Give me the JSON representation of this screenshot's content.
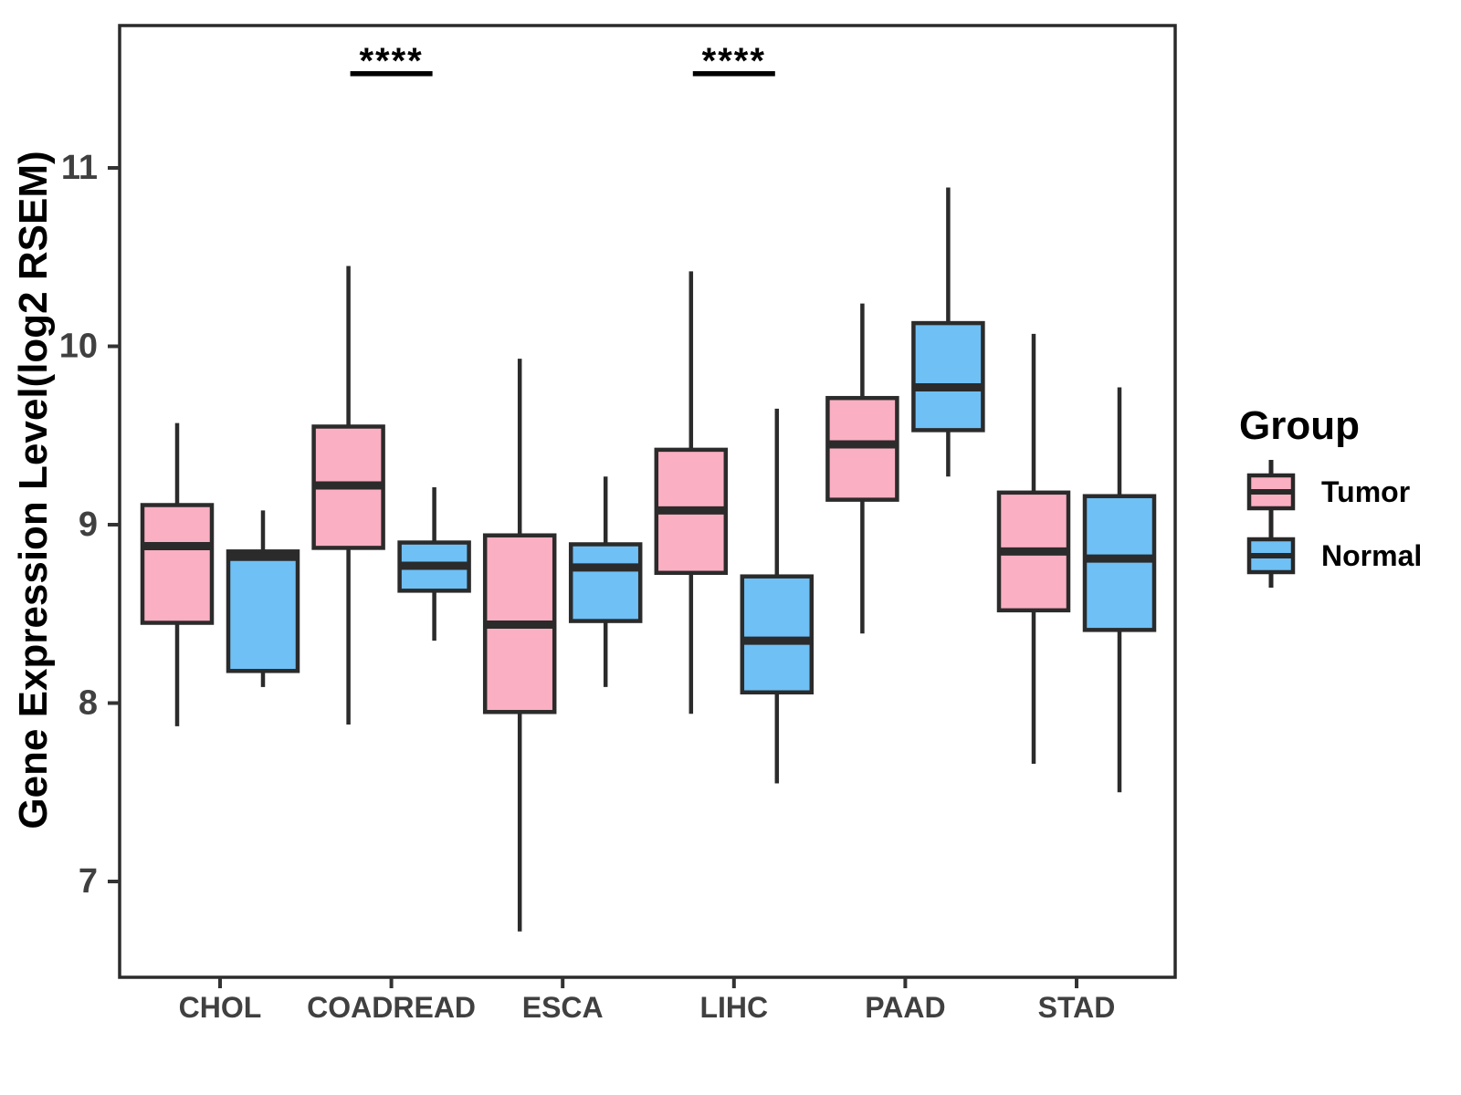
{
  "y_axis": {
    "label": "Gene Expression Level(log2 RSEM)",
    "tick_labels": [
      "7",
      "8",
      "9",
      "10",
      "11"
    ]
  },
  "x_axis": {
    "tick_labels": [
      "CHOL",
      "COADREAD",
      "ESCA",
      "LIHC",
      "PAAD",
      "STAD"
    ]
  },
  "legend": {
    "title": "Group",
    "items": [
      {
        "label": "Tumor",
        "color": "#FBAFC2"
      },
      {
        "label": "Normal",
        "color": "#6FC0F5"
      }
    ]
  },
  "chart_data": {
    "type": "boxplot",
    "title": "",
    "xlabel": "",
    "ylabel": "Gene Expression Level(log2 RSEM)",
    "y_ticks": [
      7,
      8,
      9,
      10,
      11
    ],
    "ylim": [
      6.45,
      11.8
    ],
    "grid": false,
    "legend_position": "right",
    "categories": [
      "CHOL",
      "COADREAD",
      "ESCA",
      "LIHC",
      "PAAD",
      "STAD"
    ],
    "series": [
      {
        "name": "Tumor",
        "fill": "#FBAFC2",
        "boxes": [
          {
            "whisker_low": 7.87,
            "q1": 8.45,
            "median": 8.88,
            "q3": 9.11,
            "whisker_high": 9.57
          },
          {
            "whisker_low": 7.88,
            "q1": 8.87,
            "median": 9.22,
            "q3": 9.55,
            "whisker_high": 10.45
          },
          {
            "whisker_low": 6.72,
            "q1": 7.95,
            "median": 8.44,
            "q3": 8.94,
            "whisker_high": 9.93
          },
          {
            "whisker_low": 7.94,
            "q1": 8.73,
            "median": 9.08,
            "q3": 9.42,
            "whisker_high": 10.42
          },
          {
            "whisker_low": 8.39,
            "q1": 9.14,
            "median": 9.45,
            "q3": 9.71,
            "whisker_high": 10.24
          },
          {
            "whisker_low": 7.66,
            "q1": 8.52,
            "median": 8.85,
            "q3": 9.18,
            "whisker_high": 10.07
          }
        ]
      },
      {
        "name": "Normal",
        "fill": "#6FC0F5",
        "boxes": [
          {
            "whisker_low": 8.09,
            "q1": 8.18,
            "median": 8.82,
            "q3": 8.85,
            "whisker_high": 9.08
          },
          {
            "whisker_low": 8.35,
            "q1": 8.63,
            "median": 8.77,
            "q3": 8.9,
            "whisker_high": 9.21
          },
          {
            "whisker_low": 8.09,
            "q1": 8.46,
            "median": 8.76,
            "q3": 8.89,
            "whisker_high": 9.27
          },
          {
            "whisker_low": 7.55,
            "q1": 8.06,
            "median": 8.35,
            "q3": 8.71,
            "whisker_high": 9.65
          },
          {
            "whisker_low": 9.27,
            "q1": 9.53,
            "median": 9.77,
            "q3": 10.13,
            "whisker_high": 10.89
          },
          {
            "whisker_low": 7.5,
            "q1": 8.41,
            "median": 8.81,
            "q3": 9.16,
            "whisker_high": 9.77
          }
        ]
      }
    ],
    "significance": [
      {
        "category": "COADREAD",
        "label": "****"
      },
      {
        "category": "LIHC",
        "label": "****"
      }
    ]
  }
}
